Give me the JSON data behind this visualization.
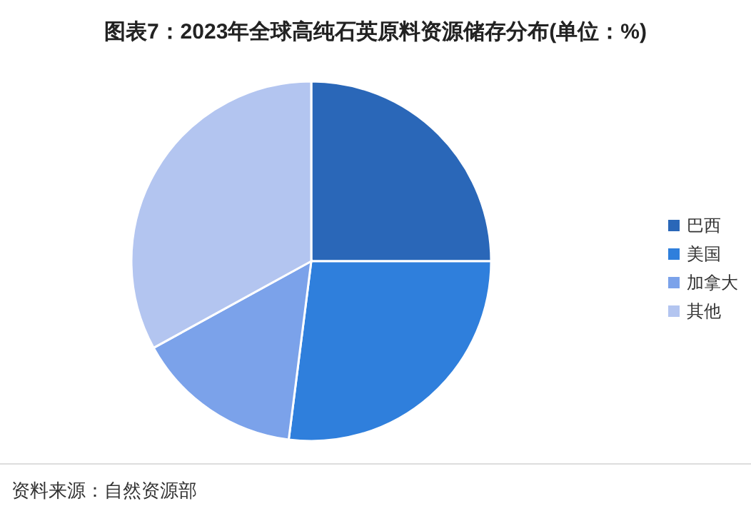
{
  "chart_data": {
    "type": "pie",
    "title": "图表7：2023年全球高纯石英原料资源储存分布(单位：%)",
    "categories": [
      "巴西",
      "美国",
      "加拿大",
      "其他"
    ],
    "values": [
      25,
      27,
      15,
      33
    ],
    "colors": [
      "#2a67b8",
      "#2f7fdc",
      "#7ba2ea",
      "#b3c5f0"
    ],
    "legend": "right",
    "annotations": [
      "资料来源：自然资源部"
    ]
  }
}
